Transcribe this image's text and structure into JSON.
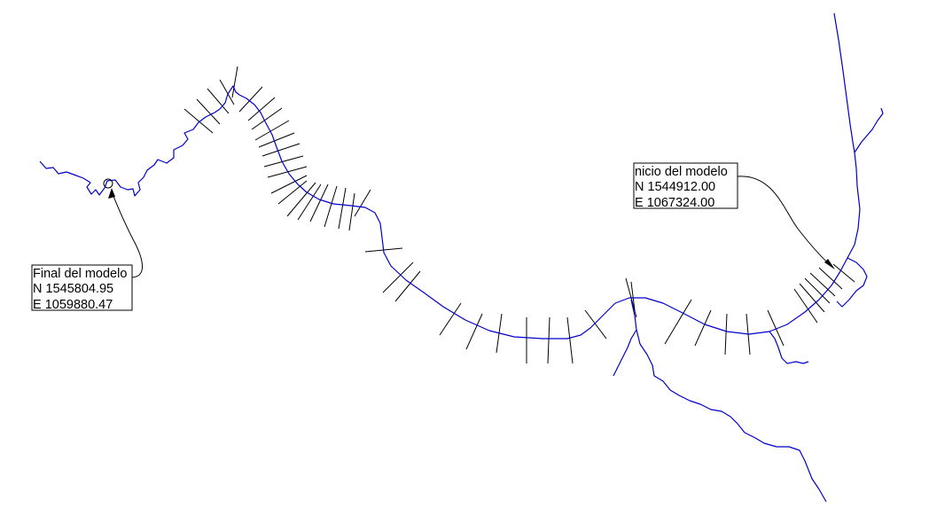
{
  "colors": {
    "river": "#0000cc",
    "sections": "#000000",
    "text": "#000000",
    "background": "#ffffff"
  },
  "labels": {
    "end": {
      "title": "Final del modelo",
      "north": "N 1545804.95",
      "east": "E 1059880.47"
    },
    "start": {
      "title": "nicio del modelo",
      "north": "N 1544912.00",
      "east": "E 1067324.00"
    }
  }
}
